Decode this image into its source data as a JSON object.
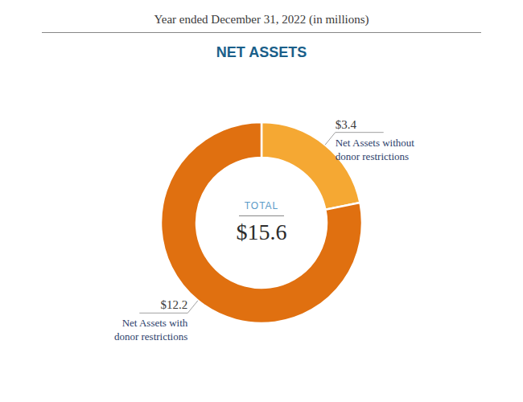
{
  "chart_data": {
    "type": "pie",
    "title": "NET ASSETS",
    "subtitle": "Year ended December 31, 2022 (in millions)",
    "categories": [
      "Net Assets without\ndonor restrictions",
      "Net Assets with\ndonor restrictions"
    ],
    "values": [
      3.4,
      12.2
    ],
    "value_labels": [
      "$3.4",
      "$12.2"
    ],
    "data_labels": true,
    "colors": [
      "#F5A833",
      "#E07010"
    ],
    "annotations": [
      "TOTAL",
      "$15.6"
    ]
  }
}
